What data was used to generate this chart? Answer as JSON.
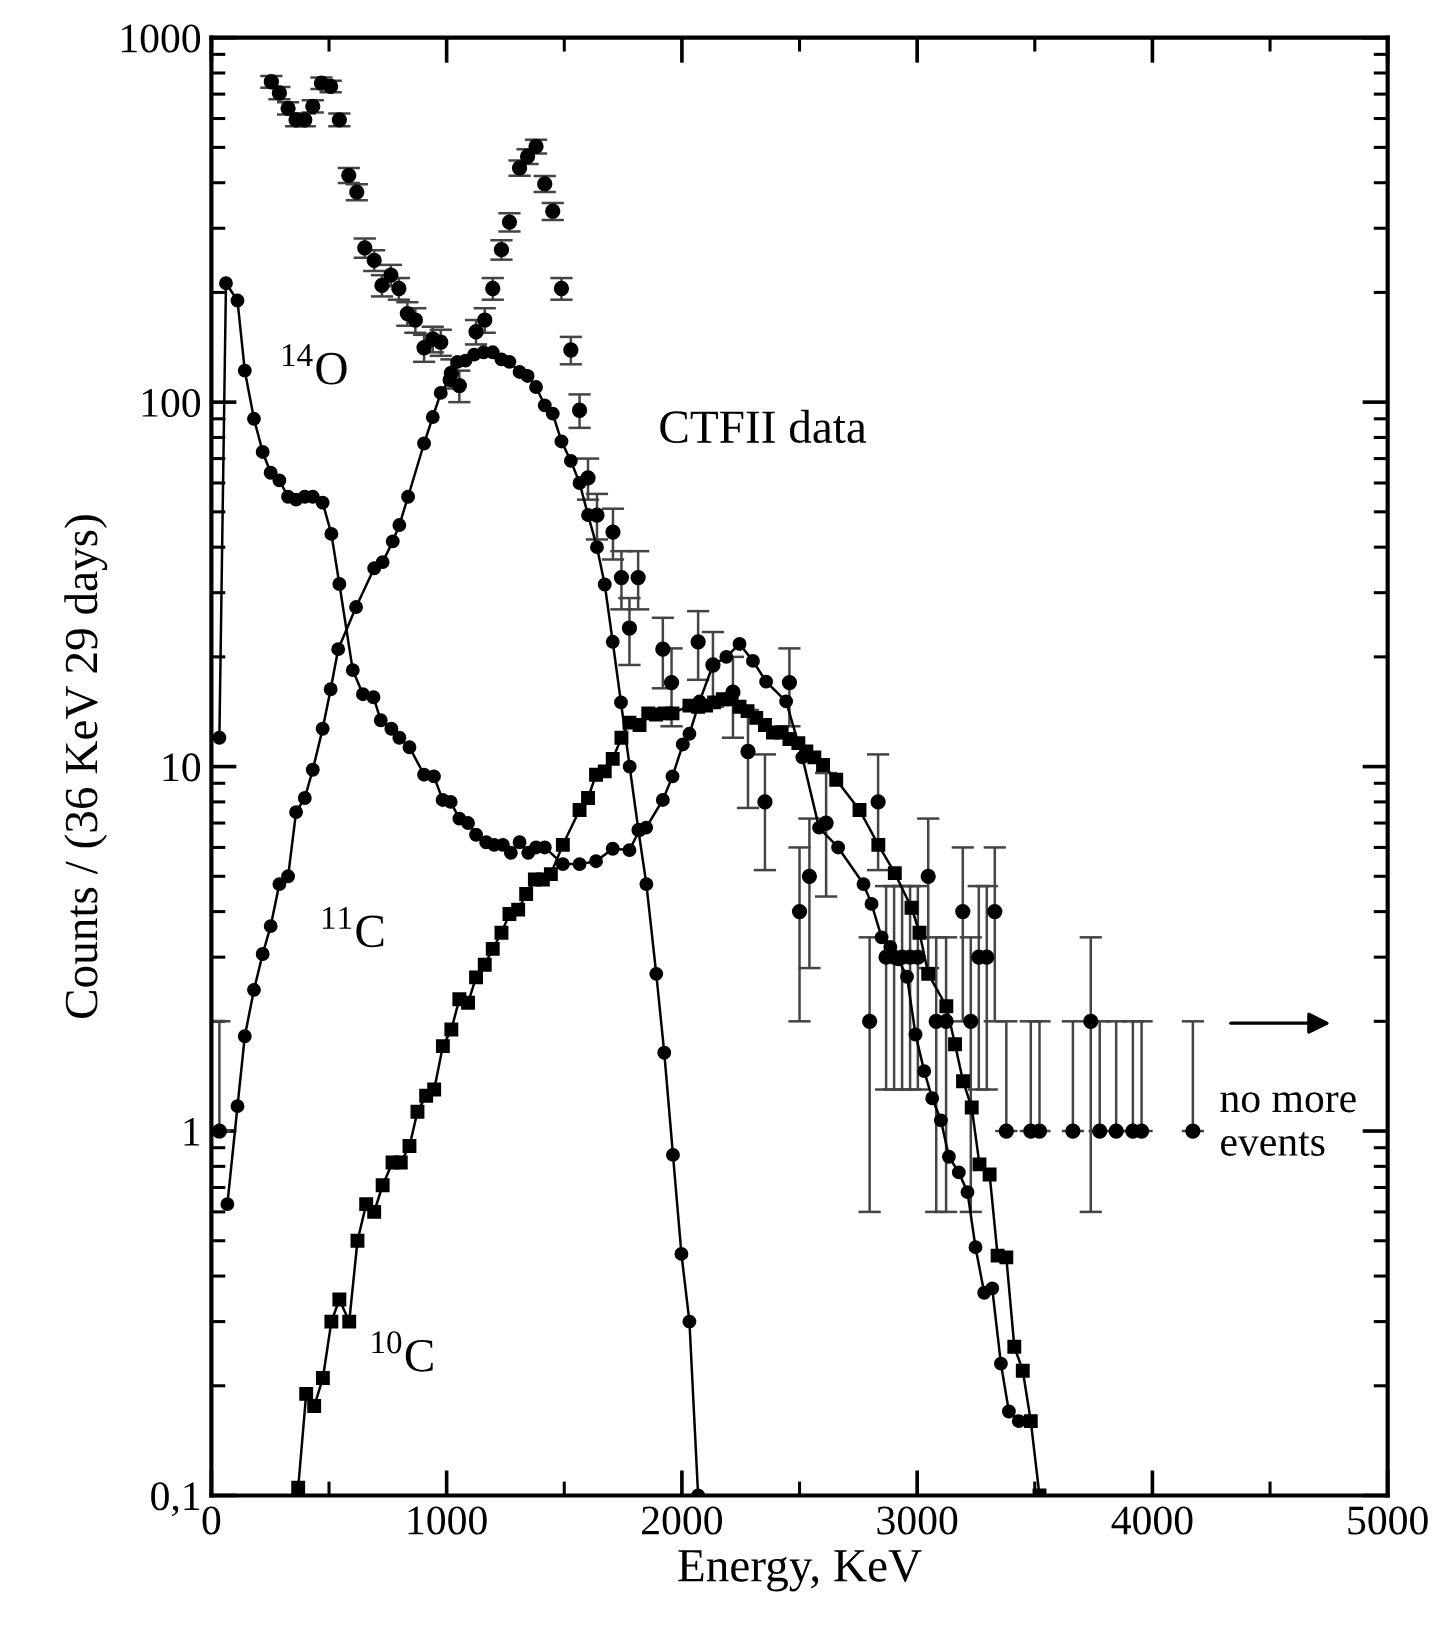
{
  "chart_data": {
    "type": "line",
    "xlabel": "Energy, KeV",
    "ylabel": "Counts / (36 KeV 29 days)",
    "log": "y",
    "xlim": [
      0,
      5000
    ],
    "xticks": [
      0,
      1000,
      2000,
      3000,
      4000,
      5000
    ],
    "ylim": [
      0.1,
      1000
    ],
    "yticks": [
      {
        "value": 0.1,
        "label": "0,1"
      },
      1,
      10,
      100,
      1000
    ],
    "grid": false,
    "legend": false,
    "series": [
      {
        "name": "$^{14}$O",
        "color": "#000000",
        "marker": "circle",
        "line_style": "solid",
        "x": [
          34,
          62,
          111,
          142,
          181,
          218,
          252,
          289,
          326,
          360,
          397,
          431,
          473,
          510,
          544,
          601,
          644,
          689,
          720,
          765,
          799,
          842,
          904,
          946,
          983,
          1017,
          1054,
          1091,
          1125,
          1168,
          1202,
          1239,
          1273,
          1310,
          1347,
          1380,
          1417,
          1494,
          1565,
          1635,
          1706,
          1777,
          1820,
          1848,
          1919,
          1960,
          2004,
          2032,
          2075,
          2132,
          2189,
          2245,
          2302,
          2358,
          2443,
          2512,
          2583,
          2664,
          2772,
          2806,
          2849,
          2886,
          2920,
          2957,
          2993,
          3030,
          3064,
          3101,
          3135,
          3177,
          3214,
          3248,
          3285,
          3319,
          3356,
          3390,
          3432
        ],
        "values": [
          12,
          212,
          190,
          122,
          90,
          73,
          64,
          61,
          55,
          54,
          55,
          55,
          53,
          43.5,
          31.7,
          18.4,
          15.8,
          15.5,
          13.4,
          12.7,
          12,
          11.3,
          9.5,
          9.4,
          8.1,
          8,
          7.2,
          7,
          6.5,
          6.2,
          6.1,
          6.1,
          5.8,
          6.2,
          5.8,
          6,
          6,
          5.4,
          5.4,
          5.5,
          5.95,
          5.9,
          6.7,
          6.8,
          8.1,
          9.4,
          11.5,
          12.3,
          15.1,
          19,
          20,
          21.7,
          19.5,
          17.1,
          15.1,
          10.6,
          6.8,
          6,
          4.76,
          4.2,
          3.4,
          3.2,
          2.96,
          2.65,
          1.84,
          1.46,
          1.23,
          1.07,
          0.85,
          0.77,
          0.68,
          0.48,
          0.36,
          0.37,
          0.23,
          0.17,
          0.16
        ]
      },
      {
        "name": "$^{11}$C",
        "color": "#000000",
        "marker": "circle",
        "line_style": "solid",
        "x": [
          68,
          111,
          142,
          181,
          218,
          252,
          289,
          326,
          360,
          397,
          431,
          473,
          507,
          539,
          615,
          692,
          728,
          771,
          799,
          836,
          904,
          941,
          975,
          1012,
          1046,
          1080,
          1117,
          1157,
          1196,
          1233,
          1267,
          1310,
          1344,
          1380,
          1417,
          1451,
          1488,
          1528,
          1565,
          1601,
          1639,
          1672,
          1706,
          1741,
          1778,
          1815,
          1849,
          1891,
          1925,
          1962,
          1998,
          2032,
          2069
        ],
        "values": [
          0.63,
          1.17,
          1.82,
          2.44,
          3.06,
          3.65,
          4.76,
          5,
          7.5,
          8.2,
          9.8,
          12.7,
          16.3,
          21,
          27.4,
          35,
          36.4,
          41.5,
          46,
          55,
          77,
          91,
          106,
          115,
          129,
          130,
          135,
          137,
          137,
          131,
          129,
          121,
          118,
          110,
          98,
          93,
          78,
          69,
          60,
          49,
          40,
          31.6,
          22,
          15,
          10,
          6.7,
          4.76,
          2.7,
          1.64,
          0.86,
          0.46,
          0.3,
          0.1
        ]
      },
      {
        "name": "$^{10}$C",
        "color": "#000000",
        "marker": "square",
        "line_style": "solid",
        "x": [
          369,
          403,
          437,
          474,
          510,
          544,
          586,
          621,
          658,
          692,
          728,
          770,
          805,
          842,
          876,
          913,
          947,
          984,
          1020,
          1054,
          1091,
          1125,
          1162,
          1196,
          1233,
          1267,
          1304,
          1338,
          1375,
          1409,
          1443,
          1494,
          1565,
          1601,
          1635,
          1672,
          1706,
          1743,
          1777,
          1820,
          1857,
          1890,
          1927,
          1960,
          2032,
          2069,
          2103,
          2137,
          2174,
          2211,
          2245,
          2279,
          2316,
          2353,
          2387,
          2424,
          2457,
          2495,
          2529,
          2563,
          2600,
          2656,
          2755,
          2835,
          2905,
          2976,
          3010,
          3047,
          3124,
          3161,
          3195,
          3232,
          3265,
          3308,
          3342,
          3379,
          3413,
          3449,
          3483,
          3520
        ],
        "values": [
          0.105,
          0.19,
          0.176,
          0.21,
          0.3,
          0.345,
          0.3,
          0.5,
          0.63,
          0.6,
          0.71,
          0.82,
          0.82,
          0.91,
          1.13,
          1.25,
          1.3,
          1.71,
          1.9,
          2.3,
          2.25,
          2.64,
          2.86,
          3.16,
          3.5,
          3.94,
          4.05,
          4.47,
          4.9,
          4.9,
          5.07,
          6.1,
          7.6,
          8.2,
          9.5,
          9.7,
          10.5,
          12,
          13.2,
          13,
          14,
          13.9,
          14,
          14,
          14.7,
          14.6,
          14.7,
          15,
          15.3,
          15.3,
          14.6,
          14.2,
          13.6,
          13,
          12.4,
          12.4,
          11.9,
          11.6,
          11,
          10.6,
          10.1,
          9.2,
          7.6,
          6.1,
          5.1,
          4.1,
          3.5,
          2.7,
          2.2,
          1.73,
          1.37,
          1.16,
          0.81,
          0.76,
          0.455,
          0.45,
          0.256,
          0.22,
          0.16,
          0.1
        ]
      },
      {
        "name": "CTFII data",
        "type": "scatter",
        "color": "#000000",
        "marker": "circle",
        "x": [
          34,
          255,
          289,
          326,
          360,
          397,
          431,
          468,
          507,
          544,
          584,
          618,
          652,
          692,
          725,
          763,
          797,
          833,
          867,
          904,
          941,
          975,
          1020,
          1054,
          1125,
          1162,
          1196,
          1233,
          1267,
          1310,
          1344,
          1380,
          1417,
          1451,
          1488,
          1528,
          1565,
          1601,
          1639,
          1707,
          1743,
          1777,
          1814,
          1919,
          1956,
          2069,
          2132,
          2217,
          2281,
          2353,
          2457,
          2500,
          2542,
          2613,
          2798,
          2834,
          2868,
          2902,
          2936,
          2970,
          3003,
          3047,
          3081,
          3123,
          3194,
          3228,
          3262,
          3296,
          3330,
          3379,
          3483,
          3520,
          3662,
          3738,
          3776,
          3846,
          3917,
          3954,
          4172
        ],
        "values": [
          1,
          757,
          705,
          640,
          595,
          595,
          648,
          750,
          735,
          595,
          419,
          377,
          265,
          245,
          209,
          223,
          205,
          175,
          168,
          141,
          149,
          146,
          120,
          111,
          156,
          168,
          205,
          262,
          312,
          439,
          472,
          503,
          397,
          334,
          205,
          139,
          95,
          62,
          49,
          44,
          33,
          24,
          33,
          21,
          17,
          22,
          19,
          16,
          11,
          8,
          17,
          4,
          5,
          7,
          2,
          8,
          3,
          3,
          3,
          3,
          3,
          5,
          2,
          2,
          4,
          2,
          3,
          3,
          4,
          1,
          1,
          1,
          1,
          2,
          1,
          1,
          1,
          1,
          1
        ],
        "errors": [
          [
            1,
            2
          ],
          28,
          27,
          25,
          24,
          24,
          25,
          27,
          27,
          24,
          20,
          19,
          16,
          16,
          14,
          15,
          14,
          13,
          13,
          12,
          12,
          12,
          11,
          11,
          12,
          13,
          14,
          16,
          18,
          21,
          22,
          22,
          20,
          18,
          14,
          12,
          10,
          8,
          7,
          7,
          6,
          5,
          6,
          4.6,
          4.1,
          4.7,
          4.4,
          4,
          3.3,
          2.8,
          4.1,
          2,
          2.2,
          2.6,
          1.4,
          2.8,
          1.7,
          1.7,
          1.7,
          1.7,
          1.7,
          2.2,
          1.4,
          1.4,
          2,
          1.4,
          1.7,
          1.7,
          2,
          [
            1,
            2
          ],
          [
            1,
            2
          ],
          [
            1,
            2
          ],
          [
            1,
            2
          ],
          1.4,
          [
            1,
            2
          ],
          [
            1,
            2
          ],
          [
            1,
            2
          ],
          [
            1,
            2
          ],
          [
            1,
            2
          ]
        ]
      }
    ],
    "annotations": [
      "no more events"
    ]
  }
}
